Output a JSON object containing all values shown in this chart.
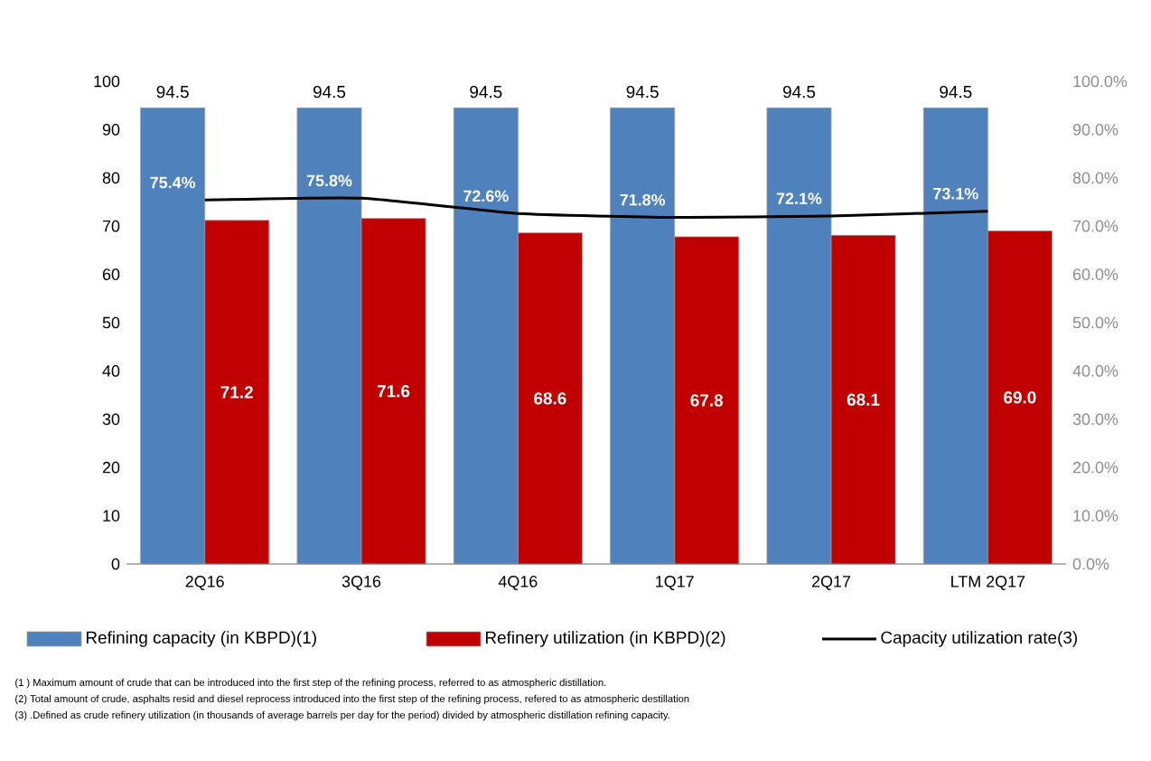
{
  "chart_data": {
    "type": "bar",
    "categories": [
      "2Q16",
      "3Q16",
      "4Q16",
      "1Q17",
      "2Q17",
      "LTM 2Q17"
    ],
    "series": [
      {
        "name": "Refining capacity (in KBPD)(1)",
        "color": "#4f81bd",
        "values": [
          94.5,
          94.5,
          94.5,
          94.5,
          94.5,
          94.5
        ],
        "value_labels": [
          "94.5",
          "94.5",
          "94.5",
          "94.5",
          "94.5",
          "94.5"
        ]
      },
      {
        "name": "Refinery utilization (in KBPD)(2)",
        "color": "#c00000",
        "values": [
          71.2,
          71.6,
          68.6,
          67.8,
          68.1,
          69.0
        ],
        "value_labels": [
          "71.2",
          "71.6",
          "68.6",
          "67.8",
          "68.1",
          "69.0"
        ]
      },
      {
        "name": "Capacity utilization rate(3)",
        "type": "line",
        "axis": "y2",
        "color": "#000000",
        "values": [
          75.4,
          75.8,
          72.6,
          71.8,
          72.1,
          73.1
        ],
        "value_labels": [
          "75.4%",
          "75.8%",
          "72.6%",
          "71.8%",
          "72.1%",
          "73.1%"
        ]
      }
    ],
    "ylim": [
      0,
      100
    ],
    "yticks": [
      0,
      10,
      20,
      30,
      40,
      50,
      60,
      70,
      80,
      90,
      100
    ],
    "y2lim": [
      0,
      100
    ],
    "y2ticks": [
      {
        "value": 0,
        "label": "0.0%"
      },
      {
        "value": 10,
        "label": "10.0%"
      },
      {
        "value": 20,
        "label": "20.0%"
      },
      {
        "value": 30,
        "label": "30.0%"
      },
      {
        "value": 40,
        "label": "40.0%"
      },
      {
        "value": 50,
        "label": "50.0%"
      },
      {
        "value": 60,
        "label": "60.0%"
      },
      {
        "value": 70,
        "label": "70.0%"
      },
      {
        "value": 80,
        "label": "80.0%"
      },
      {
        "value": 90,
        "label": "90.0%"
      },
      {
        "value": 100,
        "label": "100.0%"
      }
    ],
    "legend": "bottom",
    "annotations": [
      "(1 ) Maximum amount of crude that can be introduced into the first step of the refining process, referred to as atmospheric distillation.",
      "(2) Total amount of crude, asphalts resid and diesel reprocess introduced into the first step of the refining process, refered to as atmospheric destillation",
      "(3) .Defined as crude refinery utilization (in thousands of average barrels per day for the period) divided by atmospheric distillation refining capacity."
    ]
  }
}
